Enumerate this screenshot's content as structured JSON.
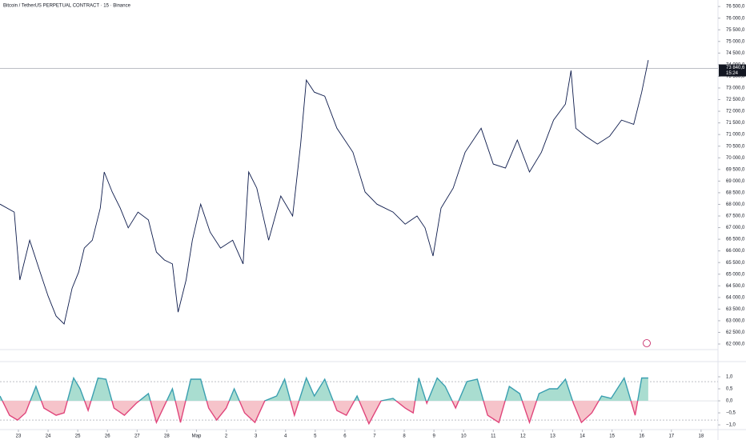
{
  "chart_data": [
    {
      "type": "line",
      "title": "Bitcoin / TetherUS PERPETUAL CONTRACT · 15 · Binance",
      "x": [
        -0.62,
        -0.14,
        0.05,
        0.38,
        0.73,
        1.0,
        1.27,
        1.54,
        1.81,
        2.03,
        2.22,
        2.49,
        2.76,
        2.89,
        3.16,
        3.43,
        3.7,
        4.03,
        4.38,
        4.65,
        4.92,
        5.19,
        5.38,
        5.65,
        5.86,
        6.14,
        6.46,
        6.81,
        7.22,
        7.57,
        7.76,
        8.03,
        8.43,
        8.84,
        9.24,
        9.51,
        9.7,
        9.97,
        10.32,
        10.73,
        11.27,
        11.68,
        12.08,
        12.62,
        13.03,
        13.43,
        13.7,
        13.97,
        14.24,
        14.65,
        15.05,
        15.59,
        16.0,
        16.41,
        16.81,
        17.22,
        17.62,
        18.03,
        18.43,
        18.62,
        18.78,
        19.11,
        19.51,
        19.92,
        20.32,
        20.73,
        21.0,
        21.22
      ],
      "series": [
        {
          "color": "#0d1b4c",
          "values": [
            68010,
            67670,
            64750,
            66460,
            65090,
            64060,
            63200,
            62860,
            64400,
            65090,
            66120,
            66460,
            67840,
            69390,
            68530,
            67840,
            66990,
            67670,
            67330,
            65950,
            65610,
            65440,
            63370,
            64750,
            66460,
            68010,
            66810,
            66120,
            66460,
            65440,
            69390,
            68700,
            66460,
            68360,
            67500,
            70590,
            73340,
            72820,
            72650,
            71270,
            70240,
            68530,
            68010,
            67670,
            67150,
            67500,
            66990,
            65780,
            67840,
            68700,
            70240,
            71270,
            69730,
            69560,
            70760,
            69390,
            70240,
            71620,
            72310,
            73750,
            71270,
            70930,
            70590,
            70930,
            71620,
            71440,
            72820,
            74200
          ]
        }
      ],
      "last_price": {
        "value": 73840.6,
        "label": "73 840,6"
      },
      "time_label": "15:24",
      "xlim": [
        -0.62,
        23.57
      ],
      "ylim": [
        61760,
        76780
      ],
      "yticks": [
        {
          "value": 62000,
          "label": "62 000,0"
        },
        {
          "value": 62500,
          "label": "62 500,0"
        },
        {
          "value": 63000,
          "label": "63 000,0"
        },
        {
          "value": 63500,
          "label": "63 500,0"
        },
        {
          "value": 64000,
          "label": "64 000,0"
        },
        {
          "value": 64500,
          "label": "64 500,0"
        },
        {
          "value": 65000,
          "label": "65 000,0"
        },
        {
          "value": 65500,
          "label": "65 500,0"
        },
        {
          "value": 66000,
          "label": "66 000,0"
        },
        {
          "value": 66500,
          "label": "66 500,0"
        },
        {
          "value": 67000,
          "label": "67 000,0"
        },
        {
          "value": 67500,
          "label": "67 500,0"
        },
        {
          "value": 68000,
          "label": "68 000,0"
        },
        {
          "value": 68500,
          "label": "68 500,0"
        },
        {
          "value": 69000,
          "label": "69 000,0"
        },
        {
          "value": 69500,
          "label": "69 500,0"
        },
        {
          "value": 70000,
          "label": "70 000,0"
        },
        {
          "value": 70500,
          "label": "70 500,0"
        },
        {
          "value": 71000,
          "label": "71 000,0"
        },
        {
          "value": 71500,
          "label": "71 500,0"
        },
        {
          "value": 72000,
          "label": "72 000,0"
        },
        {
          "value": 72500,
          "label": "72 500,0"
        },
        {
          "value": 73000,
          "label": "73 000,0"
        },
        {
          "value": 73500,
          "label": "73 500,0"
        },
        {
          "value": 74000,
          "label": "74 000,0"
        },
        {
          "value": 74500,
          "label": "74 500,0"
        },
        {
          "value": 75000,
          "label": "75 000,0"
        },
        {
          "value": 75500,
          "label": "75 500,0"
        },
        {
          "value": 76000,
          "label": "76 000,0"
        },
        {
          "value": 76500,
          "label": "76 500,0"
        }
      ]
    },
    {
      "type": "area",
      "x": [
        -0.62,
        -0.3,
        -0.03,
        0.24,
        0.59,
        0.86,
        1.27,
        1.54,
        1.86,
        2.08,
        2.35,
        2.68,
        2.95,
        3.22,
        3.57,
        3.97,
        4.38,
        4.65,
        4.92,
        5.19,
        5.46,
        5.81,
        6.14,
        6.41,
        6.68,
        7.0,
        7.27,
        7.62,
        7.97,
        8.3,
        8.7,
        8.97,
        9.3,
        9.7,
        9.97,
        10.32,
        10.73,
        11.05,
        11.41,
        11.81,
        12.22,
        12.62,
        13.03,
        13.3,
        13.49,
        13.76,
        14.11,
        14.38,
        14.73,
        15.11,
        15.46,
        15.81,
        16.19,
        16.54,
        16.89,
        17.22,
        17.54,
        17.89,
        18.16,
        18.43,
        18.7,
        18.97,
        19.32,
        19.65,
        19.97,
        20.41,
        20.78,
        21.0,
        21.22
      ],
      "series": [
        {
          "color": "#3a9fb0",
          "values": [
            0.2,
            -0.6,
            -0.8,
            -0.5,
            0.6,
            -0.3,
            -0.6,
            -0.5,
            0.95,
            0.5,
            -0.4,
            0.95,
            0.9,
            -0.3,
            -0.6,
            -0.1,
            0.3,
            -0.9,
            -0.2,
            0.5,
            -0.9,
            0.9,
            0.9,
            -0.3,
            -0.8,
            -0.3,
            0.5,
            -0.5,
            -0.9,
            0.0,
            0.2,
            0.9,
            -0.6,
            0.95,
            0.2,
            0.9,
            -0.4,
            -0.6,
            0.2,
            -0.95,
            0.0,
            0.1,
            -0.3,
            -0.5,
            0.95,
            -0.1,
            0.95,
            0.6,
            -0.3,
            0.8,
            0.9,
            -0.6,
            -0.9,
            0.6,
            0.3,
            -0.9,
            0.3,
            0.5,
            0.5,
            0.9,
            -0.1,
            -0.9,
            -0.5,
            0.2,
            0.1,
            0.95,
            -0.6,
            0.95,
            0.95
          ]
        }
      ],
      "positive_color": "#a9ddd0",
      "negative_color": "#f6c3ca",
      "levels": [
        0.8,
        -0.8
      ],
      "xlim": [
        -0.62,
        23.57
      ],
      "ylim": [
        -1.13,
        1.3
      ],
      "yticks": [
        {
          "value": 1,
          "label": "1,0"
        },
        {
          "value": 0.5,
          "label": "0,5"
        },
        {
          "value": 0,
          "label": "0,0"
        },
        {
          "value": -0.5,
          "label": "−0,5"
        },
        {
          "value": -1,
          "label": "−1,0"
        }
      ],
      "xticks": [
        {
          "value": 0,
          "label": "23"
        },
        {
          "value": 1,
          "label": "24"
        },
        {
          "value": 2,
          "label": "25"
        },
        {
          "value": 3,
          "label": "26"
        },
        {
          "value": 4,
          "label": "27"
        },
        {
          "value": 5,
          "label": "28"
        },
        {
          "value": 6,
          "label": "Мар"
        },
        {
          "value": 7,
          "label": "2"
        },
        {
          "value": 8,
          "label": "3"
        },
        {
          "value": 9,
          "label": "4"
        },
        {
          "value": 10,
          "label": "5"
        },
        {
          "value": 11,
          "label": "6"
        },
        {
          "value": 12,
          "label": "7"
        },
        {
          "value": 13,
          "label": "8"
        },
        {
          "value": 14,
          "label": "9"
        },
        {
          "value": 15,
          "label": "10"
        },
        {
          "value": 16,
          "label": "11"
        },
        {
          "value": 17,
          "label": "12"
        },
        {
          "value": 18,
          "label": "13"
        },
        {
          "value": 19,
          "label": "14"
        },
        {
          "value": 20,
          "label": "15"
        },
        {
          "value": 21,
          "label": "16"
        },
        {
          "value": 22,
          "label": "17"
        },
        {
          "value": 23,
          "label": "18"
        }
      ]
    }
  ]
}
